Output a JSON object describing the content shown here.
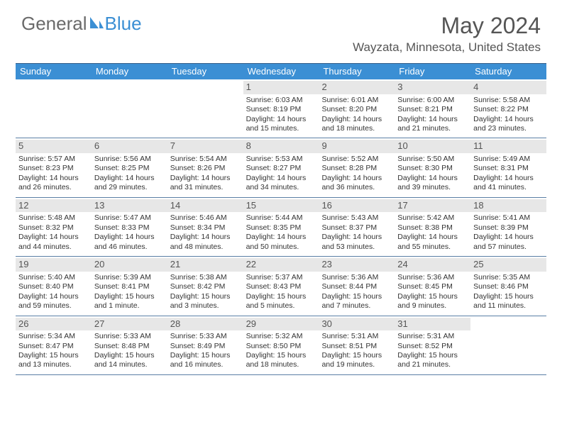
{
  "logo": {
    "text_a": "General",
    "text_b": "Blue"
  },
  "title": "May 2024",
  "location": "Wayzata, Minnesota, United States",
  "colors": {
    "header_bar": "#3b8fd4",
    "header_text": "#ffffff",
    "top_border": "#325d88",
    "row_border": "#5a7fa5",
    "daynum_bg": "#e7e7e7",
    "body_text": "#333333",
    "title_text": "#555555",
    "logo_gray": "#6a6a6a",
    "logo_blue": "#3b8fd4",
    "background": "#ffffff"
  },
  "typography": {
    "month_title_fontsize": 32,
    "location_fontsize": 17,
    "logo_fontsize": 26,
    "dayhead_fontsize": 13,
    "daynum_fontsize": 13,
    "cell_fontsize": 10.5
  },
  "dayheaders": [
    "Sunday",
    "Monday",
    "Tuesday",
    "Wednesday",
    "Thursday",
    "Friday",
    "Saturday"
  ],
  "labels": {
    "sunrise": "Sunrise:",
    "sunset": "Sunset:",
    "daylight": "Daylight:"
  },
  "weeks": [
    [
      {
        "empty": true
      },
      {
        "empty": true
      },
      {
        "empty": true
      },
      {
        "day": "1",
        "sunrise": "6:03 AM",
        "sunset": "8:19 PM",
        "daylight": "14 hours and 15 minutes."
      },
      {
        "day": "2",
        "sunrise": "6:01 AM",
        "sunset": "8:20 PM",
        "daylight": "14 hours and 18 minutes."
      },
      {
        "day": "3",
        "sunrise": "6:00 AM",
        "sunset": "8:21 PM",
        "daylight": "14 hours and 21 minutes."
      },
      {
        "day": "4",
        "sunrise": "5:58 AM",
        "sunset": "8:22 PM",
        "daylight": "14 hours and 23 minutes."
      }
    ],
    [
      {
        "day": "5",
        "sunrise": "5:57 AM",
        "sunset": "8:23 PM",
        "daylight": "14 hours and 26 minutes."
      },
      {
        "day": "6",
        "sunrise": "5:56 AM",
        "sunset": "8:25 PM",
        "daylight": "14 hours and 29 minutes."
      },
      {
        "day": "7",
        "sunrise": "5:54 AM",
        "sunset": "8:26 PM",
        "daylight": "14 hours and 31 minutes."
      },
      {
        "day": "8",
        "sunrise": "5:53 AM",
        "sunset": "8:27 PM",
        "daylight": "14 hours and 34 minutes."
      },
      {
        "day": "9",
        "sunrise": "5:52 AM",
        "sunset": "8:28 PM",
        "daylight": "14 hours and 36 minutes."
      },
      {
        "day": "10",
        "sunrise": "5:50 AM",
        "sunset": "8:30 PM",
        "daylight": "14 hours and 39 minutes."
      },
      {
        "day": "11",
        "sunrise": "5:49 AM",
        "sunset": "8:31 PM",
        "daylight": "14 hours and 41 minutes."
      }
    ],
    [
      {
        "day": "12",
        "sunrise": "5:48 AM",
        "sunset": "8:32 PM",
        "daylight": "14 hours and 44 minutes."
      },
      {
        "day": "13",
        "sunrise": "5:47 AM",
        "sunset": "8:33 PM",
        "daylight": "14 hours and 46 minutes."
      },
      {
        "day": "14",
        "sunrise": "5:46 AM",
        "sunset": "8:34 PM",
        "daylight": "14 hours and 48 minutes."
      },
      {
        "day": "15",
        "sunrise": "5:44 AM",
        "sunset": "8:35 PM",
        "daylight": "14 hours and 50 minutes."
      },
      {
        "day": "16",
        "sunrise": "5:43 AM",
        "sunset": "8:37 PM",
        "daylight": "14 hours and 53 minutes."
      },
      {
        "day": "17",
        "sunrise": "5:42 AM",
        "sunset": "8:38 PM",
        "daylight": "14 hours and 55 minutes."
      },
      {
        "day": "18",
        "sunrise": "5:41 AM",
        "sunset": "8:39 PM",
        "daylight": "14 hours and 57 minutes."
      }
    ],
    [
      {
        "day": "19",
        "sunrise": "5:40 AM",
        "sunset": "8:40 PM",
        "daylight": "14 hours and 59 minutes."
      },
      {
        "day": "20",
        "sunrise": "5:39 AM",
        "sunset": "8:41 PM",
        "daylight": "15 hours and 1 minute."
      },
      {
        "day": "21",
        "sunrise": "5:38 AM",
        "sunset": "8:42 PM",
        "daylight": "15 hours and 3 minutes."
      },
      {
        "day": "22",
        "sunrise": "5:37 AM",
        "sunset": "8:43 PM",
        "daylight": "15 hours and 5 minutes."
      },
      {
        "day": "23",
        "sunrise": "5:36 AM",
        "sunset": "8:44 PM",
        "daylight": "15 hours and 7 minutes."
      },
      {
        "day": "24",
        "sunrise": "5:36 AM",
        "sunset": "8:45 PM",
        "daylight": "15 hours and 9 minutes."
      },
      {
        "day": "25",
        "sunrise": "5:35 AM",
        "sunset": "8:46 PM",
        "daylight": "15 hours and 11 minutes."
      }
    ],
    [
      {
        "day": "26",
        "sunrise": "5:34 AM",
        "sunset": "8:47 PM",
        "daylight": "15 hours and 13 minutes."
      },
      {
        "day": "27",
        "sunrise": "5:33 AM",
        "sunset": "8:48 PM",
        "daylight": "15 hours and 14 minutes."
      },
      {
        "day": "28",
        "sunrise": "5:33 AM",
        "sunset": "8:49 PM",
        "daylight": "15 hours and 16 minutes."
      },
      {
        "day": "29",
        "sunrise": "5:32 AM",
        "sunset": "8:50 PM",
        "daylight": "15 hours and 18 minutes."
      },
      {
        "day": "30",
        "sunrise": "5:31 AM",
        "sunset": "8:51 PM",
        "daylight": "15 hours and 19 minutes."
      },
      {
        "day": "31",
        "sunrise": "5:31 AM",
        "sunset": "8:52 PM",
        "daylight": "15 hours and 21 minutes."
      },
      {
        "empty": true
      }
    ]
  ]
}
